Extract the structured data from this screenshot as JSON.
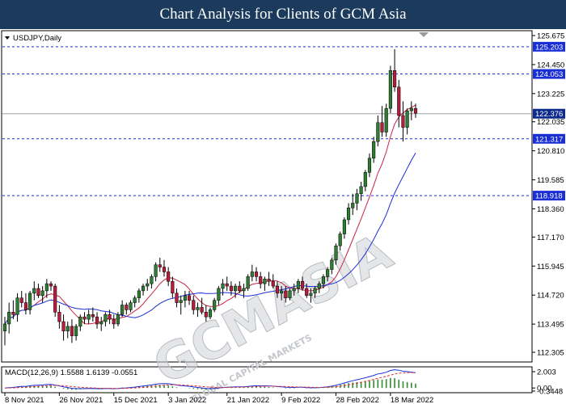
{
  "header": {
    "title": "Chart Analysis for Clients of GCM Asia"
  },
  "chart_data": {
    "type": "candlestick",
    "symbol_label": "USDJPY,Daily",
    "ylim": [
      112.305,
      125.675
    ],
    "price_ticks": [
      "125.675",
      "124.450",
      "123.225",
      "122.035",
      "120.810",
      "119.585",
      "118.360",
      "117.170",
      "115.945",
      "114.720",
      "113.495",
      "112.305"
    ],
    "current_price": {
      "value": 122.376,
      "label": "122.376",
      "color": "#0b2a8c"
    },
    "levels": [
      {
        "value": 125.203,
        "label": "125.203"
      },
      {
        "value": 124.053,
        "label": "124.053"
      },
      {
        "value": 121.317,
        "label": "121.317"
      },
      {
        "value": 118.918,
        "label": "118.918"
      }
    ],
    "date_labels": [
      {
        "text": "8 Nov 2021",
        "index": 0
      },
      {
        "text": "26 Nov 2021",
        "index": 13
      },
      {
        "text": "15 Dec 2021",
        "index": 26
      },
      {
        "text": "3 Jan 2022",
        "index": 39
      },
      {
        "text": "21 Jan 2022",
        "index": 53
      },
      {
        "text": "9 Feb 2022",
        "index": 66
      },
      {
        "text": "28 Feb 2022",
        "index": 79
      },
      {
        "text": "18 Mar 2022",
        "index": 92
      }
    ],
    "candles": [
      [
        113.2,
        113.8,
        112.6,
        113.5
      ],
      [
        113.5,
        114.4,
        113.1,
        114.0
      ],
      [
        114.0,
        114.5,
        113.7,
        113.9
      ],
      [
        113.9,
        114.8,
        113.6,
        114.6
      ],
      [
        114.6,
        114.9,
        114.2,
        114.4
      ],
      [
        114.4,
        114.8,
        113.9,
        114.1
      ],
      [
        114.1,
        114.9,
        113.9,
        114.8
      ],
      [
        114.8,
        115.3,
        114.5,
        115.0
      ],
      [
        115.0,
        115.2,
        114.6,
        114.7
      ],
      [
        114.7,
        115.1,
        114.4,
        114.9
      ],
      [
        114.9,
        115.4,
        114.6,
        115.2
      ],
      [
        115.2,
        115.3,
        114.9,
        115.1
      ],
      [
        115.1,
        115.2,
        113.8,
        114.0
      ],
      [
        114.0,
        114.3,
        113.3,
        113.6
      ],
      [
        113.6,
        113.9,
        112.8,
        113.2
      ],
      [
        113.2,
        113.6,
        112.9,
        113.4
      ],
      [
        113.4,
        113.7,
        112.7,
        113.0
      ],
      [
        113.0,
        113.5,
        112.8,
        113.4
      ],
      [
        113.4,
        113.9,
        113.2,
        113.8
      ],
      [
        113.8,
        114.0,
        113.5,
        113.7
      ],
      [
        113.7,
        114.1,
        113.5,
        113.9
      ],
      [
        113.9,
        114.2,
        113.6,
        113.8
      ],
      [
        113.8,
        114.0,
        113.3,
        113.5
      ],
      [
        113.5,
        113.8,
        113.2,
        113.6
      ],
      [
        113.6,
        114.0,
        113.4,
        113.9
      ],
      [
        113.9,
        114.1,
        113.5,
        113.7
      ],
      [
        113.7,
        113.9,
        113.3,
        113.5
      ],
      [
        113.5,
        114.0,
        113.4,
        113.9
      ],
      [
        113.9,
        114.5,
        113.8,
        114.3
      ],
      [
        114.3,
        114.4,
        113.9,
        114.1
      ],
      [
        114.1,
        114.5,
        114.0,
        114.4
      ],
      [
        114.4,
        114.7,
        114.2,
        114.6
      ],
      [
        114.6,
        115.0,
        114.4,
        114.9
      ],
      [
        114.9,
        115.2,
        114.7,
        115.1
      ],
      [
        115.1,
        115.4,
        114.9,
        115.2
      ],
      [
        115.2,
        115.6,
        115.0,
        115.5
      ],
      [
        115.5,
        116.1,
        115.3,
        116.0
      ],
      [
        116.0,
        116.3,
        115.7,
        115.9
      ],
      [
        115.9,
        116.2,
        115.5,
        115.7
      ],
      [
        115.7,
        115.9,
        115.1,
        115.3
      ],
      [
        115.3,
        115.5,
        114.6,
        114.8
      ],
      [
        114.8,
        115.0,
        114.2,
        114.4
      ],
      [
        114.4,
        114.7,
        113.9,
        114.5
      ],
      [
        114.5,
        114.9,
        114.2,
        114.7
      ],
      [
        114.7,
        114.9,
        114.3,
        114.5
      ],
      [
        114.5,
        114.7,
        113.9,
        114.1
      ],
      [
        114.1,
        114.4,
        113.8,
        114.2
      ],
      [
        114.2,
        114.6,
        113.9,
        114.0
      ],
      [
        114.0,
        114.3,
        113.6,
        113.8
      ],
      [
        113.8,
        114.2,
        113.7,
        114.1
      ],
      [
        114.1,
        114.6,
        114.0,
        114.5
      ],
      [
        114.5,
        115.1,
        114.3,
        115.0
      ],
      [
        115.0,
        115.4,
        114.7,
        115.2
      ],
      [
        115.2,
        115.5,
        114.9,
        115.1
      ],
      [
        115.1,
        115.3,
        114.7,
        114.9
      ],
      [
        114.9,
        115.2,
        114.6,
        115.1
      ],
      [
        115.1,
        115.3,
        114.8,
        114.9
      ],
      [
        114.9,
        115.2,
        114.6,
        115.0
      ],
      [
        115.0,
        115.6,
        114.9,
        115.5
      ],
      [
        115.5,
        116.0,
        115.3,
        115.7
      ],
      [
        115.7,
        115.9,
        115.3,
        115.5
      ],
      [
        115.5,
        115.7,
        115.0,
        115.2
      ],
      [
        115.2,
        115.5,
        114.9,
        115.4
      ],
      [
        115.4,
        115.7,
        115.1,
        115.3
      ],
      [
        115.3,
        115.6,
        115.0,
        115.1
      ],
      [
        115.1,
        115.3,
        114.6,
        114.8
      ],
      [
        114.8,
        115.1,
        114.5,
        114.9
      ],
      [
        114.9,
        115.1,
        114.4,
        114.6
      ],
      [
        114.6,
        115.0,
        114.5,
        114.9
      ],
      [
        114.9,
        115.2,
        114.7,
        115.0
      ],
      [
        115.0,
        115.4,
        114.8,
        115.3
      ],
      [
        115.3,
        115.5,
        114.9,
        115.0
      ],
      [
        115.0,
        115.2,
        114.6,
        114.7
      ],
      [
        114.7,
        115.0,
        114.4,
        114.8
      ],
      [
        114.8,
        115.1,
        114.6,
        115.0
      ],
      [
        115.0,
        115.3,
        114.8,
        115.2
      ],
      [
        115.2,
        115.6,
        115.0,
        115.5
      ],
      [
        115.5,
        115.9,
        115.3,
        115.8
      ],
      [
        115.8,
        116.3,
        115.6,
        116.2
      ],
      [
        116.2,
        116.9,
        116.0,
        116.8
      ],
      [
        116.8,
        117.4,
        116.6,
        117.3
      ],
      [
        117.3,
        118.0,
        117.1,
        117.9
      ],
      [
        117.9,
        118.6,
        117.7,
        118.4
      ],
      [
        118.4,
        119.0,
        118.1,
        118.6
      ],
      [
        118.6,
        119.2,
        118.3,
        119.0
      ],
      [
        119.0,
        119.5,
        118.7,
        119.3
      ],
      [
        119.3,
        120.0,
        119.1,
        119.9
      ],
      [
        119.9,
        120.7,
        119.7,
        120.5
      ],
      [
        120.5,
        121.4,
        120.3,
        121.2
      ],
      [
        121.2,
        122.3,
        121.0,
        122.0
      ],
      [
        122.0,
        122.7,
        121.4,
        121.6
      ],
      [
        121.6,
        122.8,
        121.4,
        122.6
      ],
      [
        122.6,
        124.4,
        122.4,
        124.2
      ],
      [
        124.2,
        125.1,
        123.3,
        123.5
      ],
      [
        123.5,
        123.8,
        121.8,
        122.3
      ],
      [
        122.3,
        122.9,
        121.2,
        121.8
      ],
      [
        121.8,
        122.6,
        121.5,
        122.5
      ],
      [
        122.5,
        122.9,
        122.1,
        122.6
      ],
      [
        122.6,
        122.8,
        122.2,
        122.4
      ]
    ],
    "ma_short_color": "#cc2244",
    "ma_long_color": "#1a2ed6",
    "macd": {
      "label": "MACD(12,26,9) 1.5588 1.6139 -0.0551",
      "ylim": [
        -0.3448,
        2.003
      ],
      "ticks": [
        "2.003",
        "0.00",
        "-0.3448"
      ],
      "main_color": "#1a2ed6",
      "signal_color": "#e03030",
      "hist_color": "#2e8b2e"
    },
    "watermark": {
      "main": "GCMASIA",
      "sub": "GLOBAL CAPITAL MARKETS"
    }
  }
}
